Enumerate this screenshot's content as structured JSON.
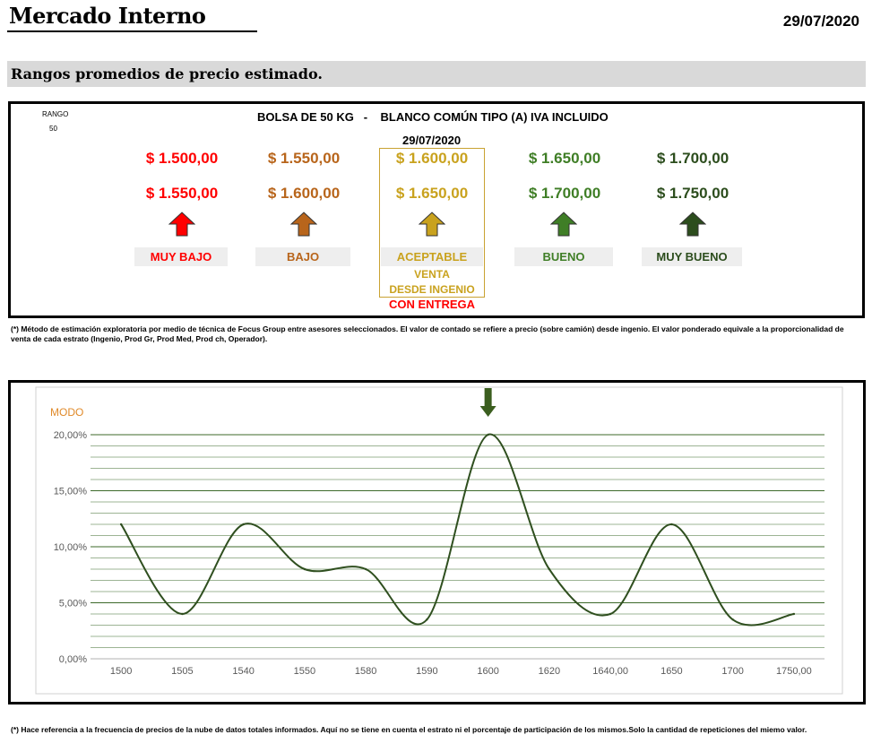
{
  "header": {
    "title": "Mercado Interno",
    "date": "29/07/2020"
  },
  "section": {
    "title": "Rangos promedios de precio estimado."
  },
  "range_panel": {
    "rango_label": "RANGO",
    "rango_value": "50",
    "product_title": "BOLSA DE 50 KG   -    BLANCO COMÚN TIPO (A) IVA INCLUIDO",
    "current_date": "29/07/2020",
    "sale_note_line1": "VENTA",
    "sale_note_line2": "DESDE INGENIO",
    "delivery_note": "CON ENTREGA",
    "tiers": [
      {
        "label": "MUY BAJO",
        "price_low": "$ 1.500,00",
        "price_high": "$ 1.550,00",
        "color": "#ff0000",
        "arrow": "up-arrow-icon"
      },
      {
        "label": "BAJO",
        "price_low": "$ 1.550,00",
        "price_high": "$ 1.600,00",
        "color": "#b8651b",
        "arrow": "up-arrow-icon"
      },
      {
        "label": "ACEPTABLE",
        "price_low": "$ 1.600,00",
        "price_high": "$ 1.650,00",
        "color": "#c9a21e",
        "arrow": "up-arrow-icon"
      },
      {
        "label": "BUENO",
        "price_low": "$ 1.650,00",
        "price_high": "$ 1.700,00",
        "color": "#3f7e26",
        "arrow": "up-arrow-icon"
      },
      {
        "label": "MUY BUENO",
        "price_low": "$ 1.700,00",
        "price_high": "$ 1.750,00",
        "color": "#2c4d1d",
        "arrow": "up-arrow-icon"
      }
    ],
    "footnote": "(*) Método de estimación exploratoria por medio de técnica de Focus Group entre asesores seleccionados. El valor de contado se refiere a precio (sobre camión) desde ingenio. El valor ponderado equivale a la proporcionalidad de venta de cada estrato (Ingenio, Prod Gr, Prod Med, Prod ch, Operador)."
  },
  "chart_data": {
    "type": "line",
    "title": "MODO",
    "categories": [
      "1500",
      "1505",
      "1540",
      "1550",
      "1580",
      "1590",
      "1600",
      "1620",
      "1640,00",
      "1650",
      "1700",
      "1750,00"
    ],
    "series": [
      {
        "values": [
          12,
          4,
          12,
          8,
          8,
          3.5,
          20,
          8,
          4,
          12,
          3.5,
          4
        ],
        "color": "#2f4f1f"
      }
    ],
    "ylim": [
      0,
      20
    ],
    "yticks": [
      "0,00%",
      "5,00%",
      "10,00%",
      "15,00%",
      "20,00%"
    ],
    "smooth": true,
    "grid": true,
    "marker_arrow_category": "1600",
    "colors": {
      "title": "#e08a2a",
      "grid": "#3d6a2a",
      "line": "#2f4f1f",
      "arrow": "#3b5e1f"
    }
  },
  "chart_footnote": "(*) Hace referencia a la frecuencia de precios de la nube de datos totales informados. Aquí no se tiene en cuenta el estrato ni el porcentaje de participación de los mismos.Solo la cantidad de repeticiones del miemo valor."
}
